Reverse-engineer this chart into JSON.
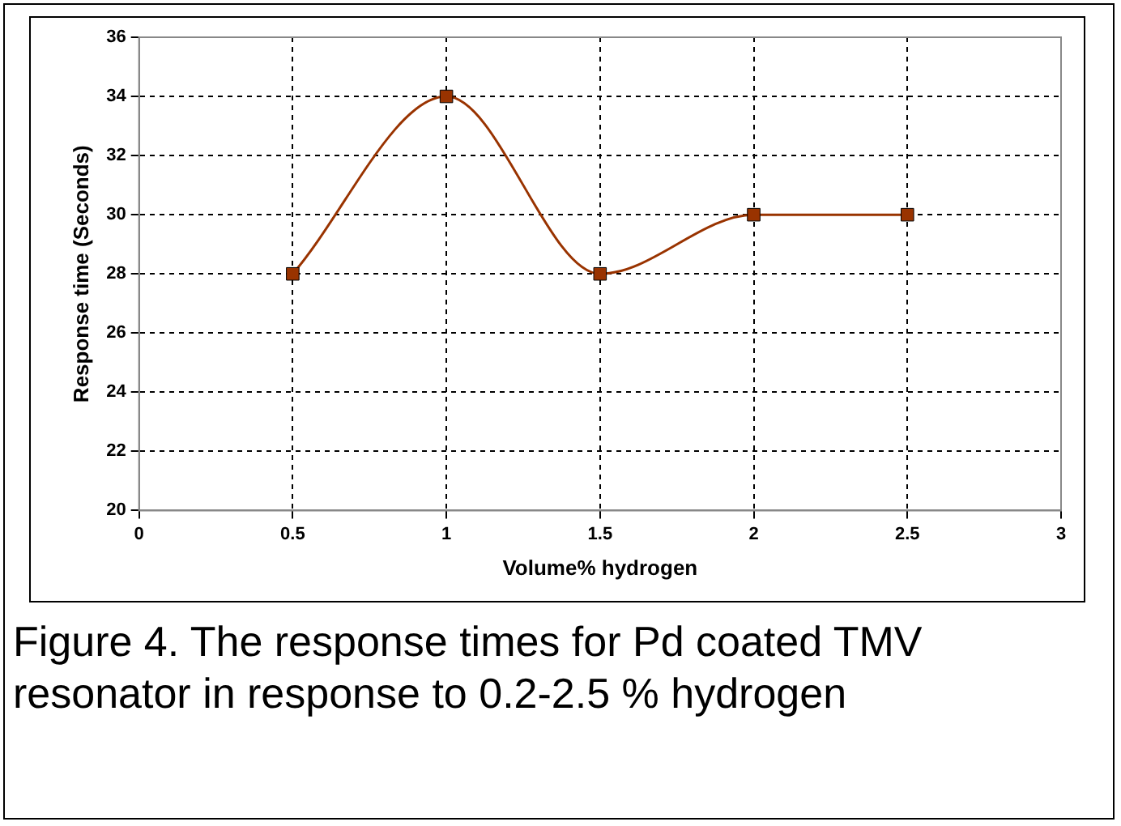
{
  "chart_data": {
    "type": "line",
    "xlabel": "Volume% hydrogen",
    "ylabel": "Response time (Seconds)",
    "x": [
      0.5,
      1,
      1.5,
      2,
      2.5
    ],
    "series": [
      {
        "color": "#993300",
        "values": [
          28,
          34,
          28,
          30,
          30
        ]
      }
    ],
    "xlim": [
      0,
      3
    ],
    "xticks": [
      0,
      0.5,
      1,
      1.5,
      2,
      2.5,
      3
    ],
    "ylim": [
      20,
      36
    ],
    "yticks": [
      20,
      22,
      24,
      26,
      28,
      30,
      32,
      34,
      36
    ],
    "grid": true,
    "legend": false,
    "marker": "square",
    "line_style": "solid",
    "annotations": [
      "Figure 4. The response times for Pd coated TMV resonator in response to 0.2-2.5 % hydrogen"
    ]
  }
}
